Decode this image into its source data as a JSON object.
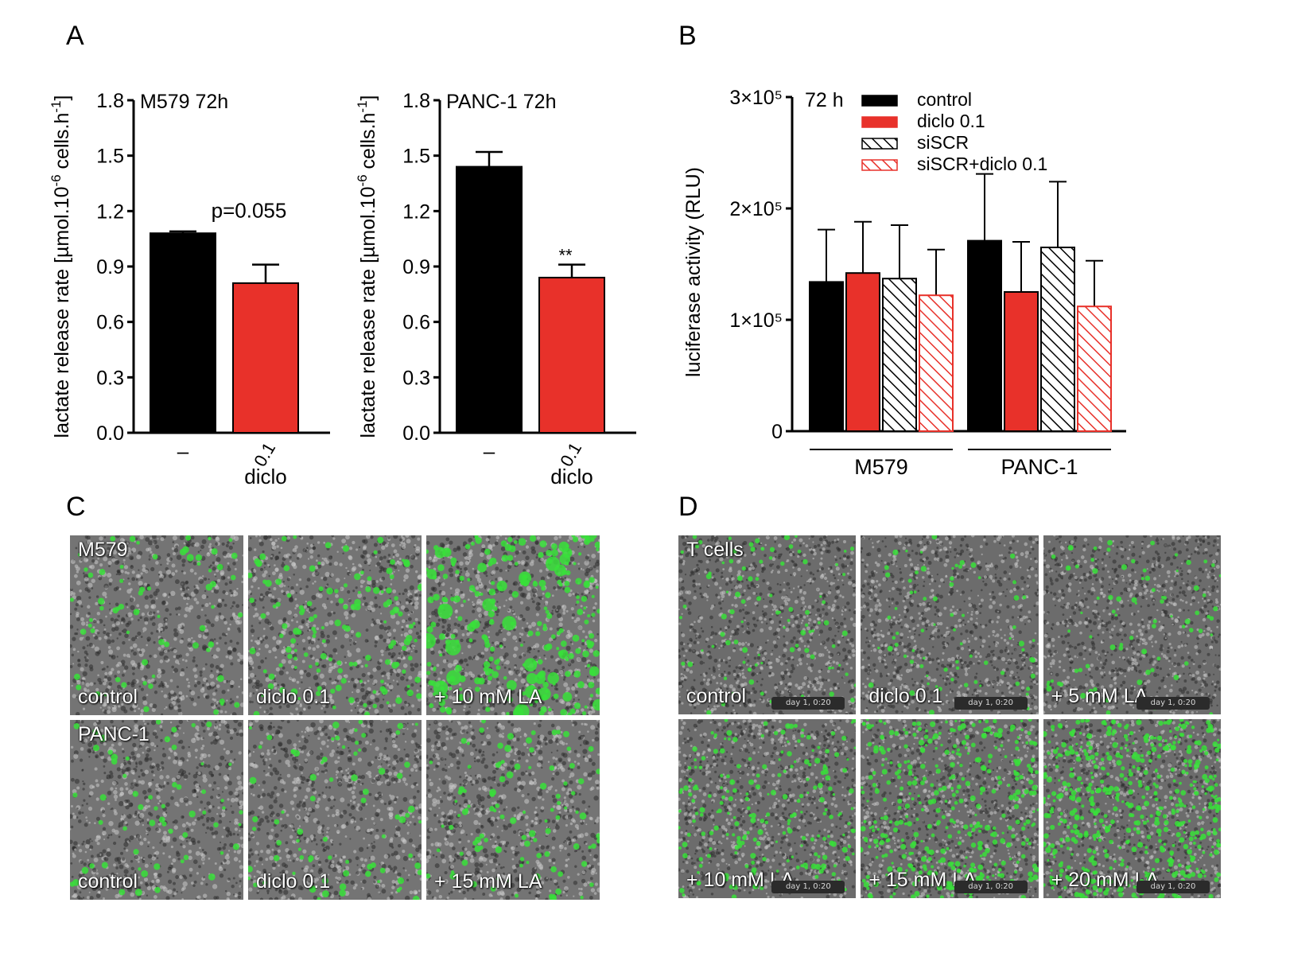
{
  "panels": {
    "a": "A",
    "b": "B",
    "c": "C",
    "d": "D"
  },
  "chart_data": [
    {
      "type": "bar",
      "panel": "A",
      "title": "M579 72h",
      "ylabel": "lactate release rate [µmol.10-6 cells.h-1]",
      "xlabel": "diclo",
      "categories": [
        "–",
        "0.1"
      ],
      "values": [
        1.08,
        0.81
      ],
      "errors": [
        0.01,
        0.1
      ],
      "colors": [
        "#000000",
        "#e8312a"
      ],
      "ylim": [
        0,
        1.8
      ],
      "yticks": [
        "0.0",
        "0.3",
        "0.6",
        "0.9",
        "1.2",
        "1.5",
        "1.8"
      ],
      "annotation": "p=0.055"
    },
    {
      "type": "bar",
      "panel": "A",
      "title": "PANC-1 72h",
      "ylabel": "lactate release rate [µmol.10-6 cells.h-1]",
      "xlabel": "diclo",
      "categories": [
        "–",
        "0.1"
      ],
      "values": [
        1.44,
        0.84
      ],
      "errors": [
        0.08,
        0.07
      ],
      "colors": [
        "#000000",
        "#e8312a"
      ],
      "ylim": [
        0,
        1.8
      ],
      "yticks": [
        "0.0",
        "0.3",
        "0.6",
        "0.9",
        "1.2",
        "1.5",
        "1.8"
      ],
      "annotation": "**"
    },
    {
      "type": "bar",
      "panel": "B",
      "title": "72 h",
      "ylabel": "luciferase activity (RLU)",
      "ylim": [
        0,
        300000
      ],
      "yticks": [
        "0",
        "1×10⁵",
        "2×10⁵",
        "3×10⁵"
      ],
      "categories": [
        "M579",
        "PANC-1"
      ],
      "legend_position": "top",
      "series": [
        {
          "name": "control",
          "style": "solid-black",
          "values": [
            134000,
            171000
          ],
          "errors": [
            47000,
            60000
          ]
        },
        {
          "name": "diclo 0.1",
          "style": "solid-red",
          "values": [
            142000,
            125000
          ],
          "errors": [
            46000,
            45000
          ]
        },
        {
          "name": "siSCR",
          "style": "hatch-black",
          "values": [
            137000,
            165000
          ],
          "errors": [
            48000,
            59000
          ]
        },
        {
          "name": "siSCR+diclo 0.1",
          "style": "hatch-red",
          "values": [
            122000,
            112000
          ],
          "errors": [
            41000,
            41000
          ]
        }
      ]
    }
  ],
  "panel_c": {
    "tiles": [
      {
        "top_label": "M579",
        "label": "control",
        "green": 0.16,
        "clump": false
      },
      {
        "top_label": "",
        "label": "diclo 0.1",
        "green": 0.32,
        "clump": false
      },
      {
        "top_label": "",
        "label": "+ 10 mM LA",
        "green": 0.62,
        "clump": true
      },
      {
        "top_label": "PANC-1",
        "label": "control",
        "green": 0.14,
        "clump": false
      },
      {
        "top_label": "",
        "label": "diclo 0.1",
        "green": 0.18,
        "clump": false
      },
      {
        "top_label": "",
        "label": "+ 15 mM LA",
        "green": 0.24,
        "clump": false
      }
    ]
  },
  "panel_d": {
    "timestamp": "day 1, 0:20",
    "tiles": [
      {
        "top_label": "T cells",
        "label": "control",
        "green": 0.1
      },
      {
        "top_label": "",
        "label": "diclo 0.1",
        "green": 0.08
      },
      {
        "top_label": "",
        "label": "+ 5 mM LA",
        "green": 0.09
      },
      {
        "top_label": "",
        "label": "+ 10 mM LA",
        "green": 0.24
      },
      {
        "top_label": "",
        "label": "+ 15 mM LA",
        "green": 0.42
      },
      {
        "top_label": "",
        "label": "+ 20 mM LA",
        "green": 0.58
      }
    ]
  }
}
